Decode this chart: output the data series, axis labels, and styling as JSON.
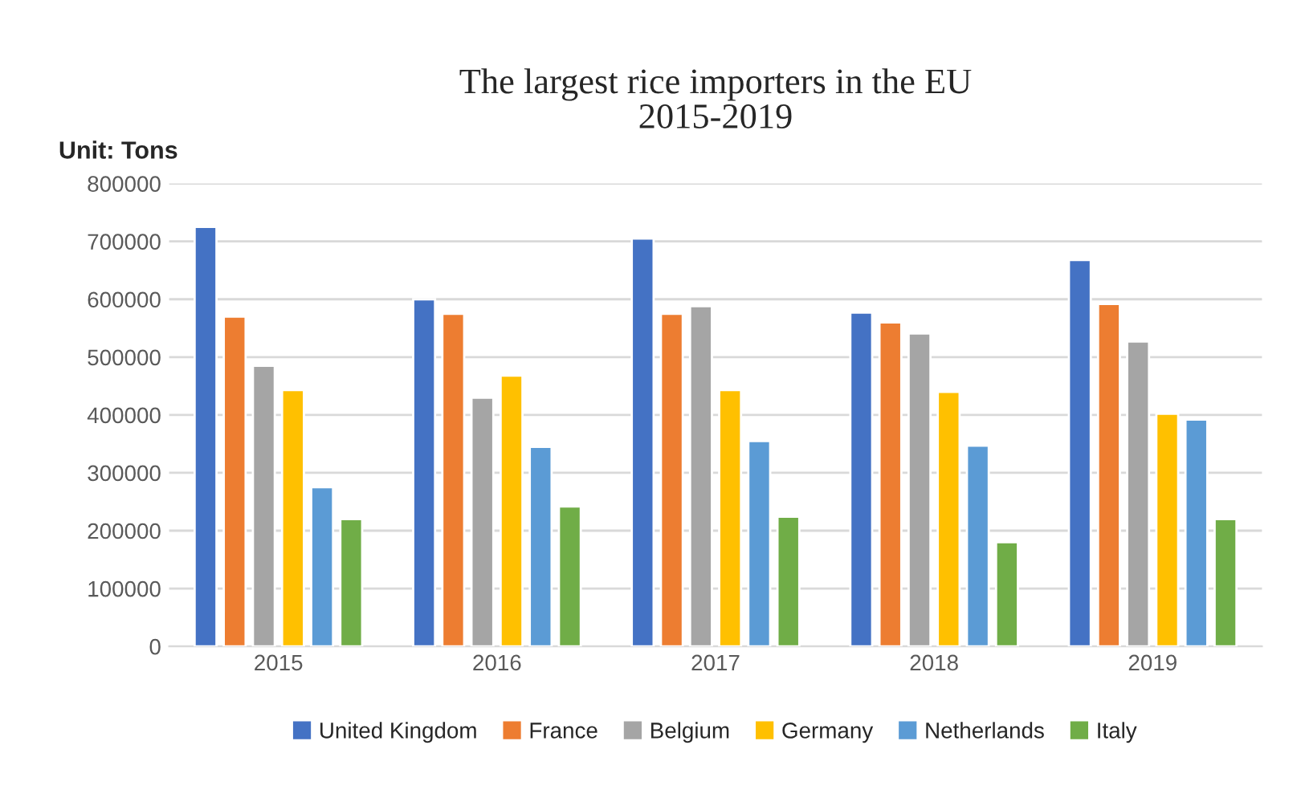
{
  "chart_data": {
    "type": "bar",
    "title": "The largest rice importers in the EU\n2015-2019",
    "annotations": [
      "Unit: Tons"
    ],
    "categories": [
      "2015",
      "2016",
      "2017",
      "2018",
      "2019"
    ],
    "series": [
      {
        "name": "United Kingdom",
        "color": "#4472c4",
        "values": [
          725000,
          600000,
          705000,
          577000,
          668000
        ]
      },
      {
        "name": "France",
        "color": "#ed7d31",
        "values": [
          570000,
          575000,
          575000,
          560000,
          592000
        ]
      },
      {
        "name": "Belgium",
        "color": "#a5a5a5",
        "values": [
          485000,
          430000,
          588000,
          541000,
          527000
        ]
      },
      {
        "name": "Germany",
        "color": "#ffc000",
        "values": [
          443000,
          468000,
          443000,
          440000,
          402000
        ]
      },
      {
        "name": "Netherlands",
        "color": "#5b9bd5",
        "values": [
          275000,
          345000,
          355000,
          347000,
          392000
        ]
      },
      {
        "name": "Italy",
        "color": "#70ad47",
        "values": [
          220000,
          242000,
          224000,
          180000,
          220000
        ]
      }
    ],
    "ylim": [
      0,
      800000
    ],
    "yticks": [
      0,
      100000,
      200000,
      300000,
      400000,
      500000,
      600000,
      700000,
      800000
    ],
    "grid": "y",
    "legend": "bottom"
  }
}
